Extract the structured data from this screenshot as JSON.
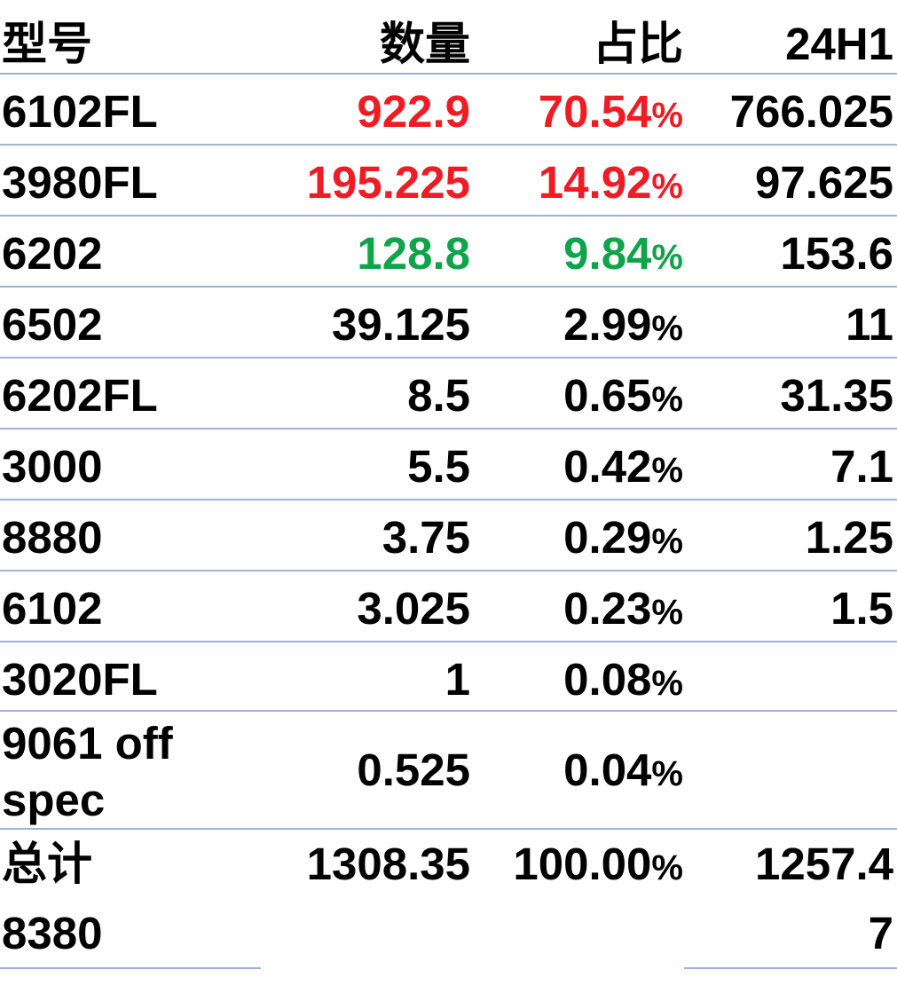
{
  "header": {
    "model": "型号",
    "qty": "数量",
    "ratio": "占比",
    "h1": "24H1"
  },
  "rows": [
    {
      "model": "6102FL",
      "qty": "922.9",
      "ratio_num": "70.54",
      "ratio_pct": "%",
      "h1": "766.025",
      "highlight": "#ee1c24"
    },
    {
      "model": "3980FL",
      "qty": "195.225",
      "ratio_num": "14.92",
      "ratio_pct": "%",
      "h1": "97.625",
      "highlight": "#ee1c24"
    },
    {
      "model": "6202",
      "qty": "128.8",
      "ratio_num": "9.84",
      "ratio_pct": "%",
      "h1": "153.6",
      "highlight": "#0fa44a"
    },
    {
      "model": "6502",
      "qty": "39.125",
      "ratio_num": "2.99",
      "ratio_pct": "%",
      "h1": "11"
    },
    {
      "model": "6202FL",
      "qty": "8.5",
      "ratio_num": "0.65",
      "ratio_pct": "%",
      "h1": "31.35"
    },
    {
      "model": "3000",
      "qty": "5.5",
      "ratio_num": "0.42",
      "ratio_pct": "%",
      "h1": "7.1"
    },
    {
      "model": "8880",
      "qty": "3.75",
      "ratio_num": "0.29",
      "ratio_pct": "%",
      "h1": "1.25"
    },
    {
      "model": "6102",
      "qty": "3.025",
      "ratio_num": "0.23",
      "ratio_pct": "%",
      "h1": "1.5"
    },
    {
      "model": "3020FL",
      "qty": "1",
      "ratio_num": "0.08",
      "ratio_pct": "%",
      "h1": ""
    },
    {
      "model": "9061 off spec",
      "qty": "0.525",
      "ratio_num": "0.04",
      "ratio_pct": "%",
      "h1": ""
    }
  ],
  "total": {
    "label": "总计",
    "qty": "1308.35",
    "ratio_num": "100.00",
    "ratio_pct": "%",
    "h1_line1": "1257.4",
    "h1_line2": "7"
  },
  "extra": {
    "model": "8380"
  },
  "colors": {
    "red": "#ee1c24",
    "green": "#0fa44a",
    "rule": "#9fb2d8"
  }
}
